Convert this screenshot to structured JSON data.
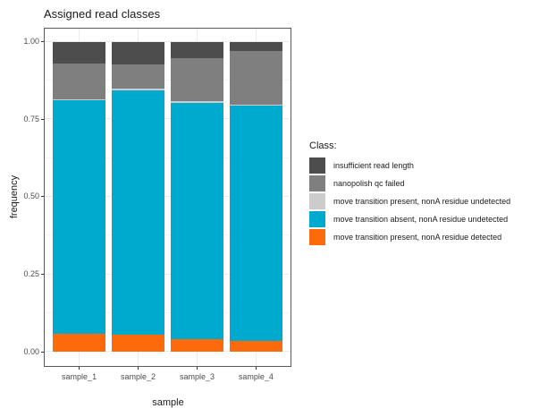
{
  "title": "Assigned read classes",
  "x_axis": {
    "title": "sample",
    "tick_labels": [
      "sample_1",
      "sample_2",
      "sample_3",
      "sample_4"
    ]
  },
  "y_axis": {
    "title": "frequency",
    "ticks": [
      {
        "label": "1.00",
        "value": 1.0
      },
      {
        "label": "0.75",
        "value": 0.75
      },
      {
        "label": "0.50",
        "value": 0.5
      },
      {
        "label": "0.25",
        "value": 0.25
      },
      {
        "label": "0.00",
        "value": 0.0
      }
    ]
  },
  "legend": {
    "title": "Class:"
  },
  "chart_data": {
    "type": "bar",
    "stacked": true,
    "title": "Assigned read classes",
    "xlabel": "sample",
    "ylabel": "frequency",
    "ylim": [
      0,
      1
    ],
    "categories": [
      "sample_1",
      "sample_2",
      "sample_3",
      "sample_4"
    ],
    "series": [
      {
        "name": "insufficient read length",
        "color": "#4D4D4D",
        "values": [
          0.07,
          0.073,
          0.052,
          0.031
        ]
      },
      {
        "name": "nanopolish qc failed",
        "color": "#7F7F7F",
        "values": [
          0.116,
          0.079,
          0.14,
          0.172
        ]
      },
      {
        "name": "move transition present, nonA residue undetected",
        "color": "#CCCCCC",
        "values": [
          0.004,
          0.004,
          0.004,
          0.004
        ]
      },
      {
        "name": "move transition absent, nonA residue undetected",
        "color": "#00A9CE",
        "values": [
          0.753,
          0.788,
          0.762,
          0.758
        ]
      },
      {
        "name": "move transition present, nonA residue detected",
        "color": "#FC6A0B",
        "values": [
          0.057,
          0.056,
          0.042,
          0.035
        ]
      }
    ],
    "stack_order": "series listed top-to-bottom within each bar",
    "y_major_ticks": [
      0,
      0.25,
      0.5,
      0.75,
      1.0
    ],
    "y_minor_ticks": [
      0.125,
      0.375,
      0.625,
      0.875
    ],
    "grid": true,
    "legend_position": "right"
  },
  "colors": {
    "background": "#FFFFFF",
    "panel_border": "#595959",
    "grid_major": "#EBEBEB",
    "grid_minor": "#F4F4F4",
    "tick_mark": "#333333",
    "axis_text": "#4D4D4D",
    "title_text": "#1A1A1A"
  }
}
